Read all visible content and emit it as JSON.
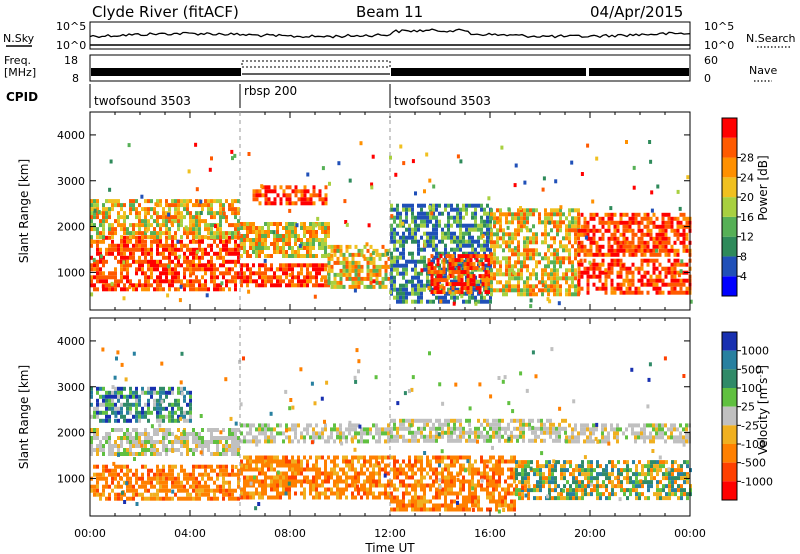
{
  "header": {
    "station": "Clyde River (fitACF)",
    "beam": "Beam 11",
    "date": "04/Apr/2015"
  },
  "noise_panel": {
    "left_label": "N.Sky",
    "right_label": "N.Search",
    "left_ticks": [
      "10^5",
      "10^0"
    ],
    "right_ticks": [
      "10^5",
      "10^0"
    ]
  },
  "freq_panel": {
    "left_label_line1": "Freq.",
    "left_label_line2": "[MHz]",
    "right_label": "Nave",
    "left_ticks": [
      "18",
      "8"
    ],
    "right_ticks": [
      "60",
      "0"
    ]
  },
  "cpid": {
    "label": "CPID",
    "segments": [
      {
        "name": "twofsound 3503",
        "start_hour": 0,
        "end_hour": 6
      },
      {
        "name": "rbsp 200",
        "start_hour": 6,
        "end_hour": 12
      },
      {
        "name": "twofsound 3503",
        "start_hour": 12,
        "end_hour": 24
      }
    ]
  },
  "power_panel": {
    "ylabel": "Slant Range [km]",
    "yticks": [
      "1000",
      "2000",
      "3000",
      "4000"
    ],
    "colorbar_label": "Power [dB]",
    "colorbar_ticks": [
      "4",
      "8",
      "12",
      "16",
      "20",
      "24",
      "28"
    ],
    "colorbar_colors": [
      "#0000ff",
      "#2050b8",
      "#2e8a5a",
      "#56b056",
      "#a8d040",
      "#f0c020",
      "#ff9000",
      "#ff5a00",
      "#ff0000"
    ]
  },
  "velocity_panel": {
    "ylabel": "Slant Range [km]",
    "yticks": [
      "1000",
      "2000",
      "3000",
      "4000"
    ],
    "colorbar_label": "Velocity [m s",
    "colorbar_label_sup": "-1",
    "colorbar_label_end": "]",
    "colorbar_ticks": [
      "1000",
      "500",
      "100",
      "25",
      "-25",
      "-100",
      "-500",
      "-1000"
    ],
    "colorbar_colors": [
      "#1830b0",
      "#2880a0",
      "#308a68",
      "#60c040",
      "#c0c0c0",
      "#f0b020",
      "#ff8000",
      "#ff4000",
      "#ff0000"
    ]
  },
  "xaxis": {
    "ticks": [
      "00:00",
      "04:00",
      "08:00",
      "12:00",
      "16:00",
      "20:00",
      "00:00"
    ],
    "label": "Time UT"
  },
  "chart_data": {
    "type": "heatmap",
    "x_range_hours": [
      0,
      24
    ],
    "y_range_km": [
      180,
      4500
    ],
    "power_bands": [
      {
        "t0": 0.0,
        "t1": 6.0,
        "r0": 600,
        "r1": 1200,
        "level": "high"
      },
      {
        "t0": 0.0,
        "t1": 6.0,
        "r0": 1200,
        "r1": 1800,
        "level": "high"
      },
      {
        "t0": 0.0,
        "t1": 6.0,
        "r0": 1800,
        "r1": 2600,
        "level": "mid"
      },
      {
        "t0": 6.0,
        "t1": 9.5,
        "r0": 700,
        "r1": 1200,
        "level": "high"
      },
      {
        "t0": 6.0,
        "t1": 9.5,
        "r0": 1400,
        "r1": 2100,
        "level": "mid"
      },
      {
        "t0": 6.5,
        "t1": 9.5,
        "r0": 2500,
        "r1": 2900,
        "level": "high"
      },
      {
        "t0": 9.5,
        "t1": 12.0,
        "r0": 700,
        "r1": 1600,
        "level": "mid"
      },
      {
        "t0": 12.0,
        "t1": 16.0,
        "r0": 400,
        "r1": 2500,
        "level": "low"
      },
      {
        "t0": 13.5,
        "t1": 16.0,
        "r0": 600,
        "r1": 1400,
        "level": "high"
      },
      {
        "t0": 16.0,
        "t1": 19.5,
        "r0": 500,
        "r1": 2400,
        "level": "mid"
      },
      {
        "t0": 19.5,
        "t1": 24.0,
        "r0": 600,
        "r1": 1300,
        "level": "high"
      },
      {
        "t0": 19.5,
        "t1": 24.0,
        "r0": 1400,
        "r1": 2300,
        "level": "high"
      }
    ],
    "velocity_bands": [
      {
        "t0": 0.0,
        "t1": 6.0,
        "r0": 600,
        "r1": 1300,
        "level": "neg"
      },
      {
        "t0": 0.0,
        "t1": 6.0,
        "r0": 1500,
        "r1": 2100,
        "level": "zero"
      },
      {
        "t0": 0.0,
        "t1": 4.0,
        "r0": 2300,
        "r1": 3000,
        "level": "pos"
      },
      {
        "t0": 6.0,
        "t1": 12.0,
        "r0": 600,
        "r1": 1500,
        "level": "neg"
      },
      {
        "t0": 6.0,
        "t1": 12.0,
        "r0": 1800,
        "r1": 2200,
        "level": "zero"
      },
      {
        "t0": 12.0,
        "t1": 17.0,
        "r0": 300,
        "r1": 1500,
        "level": "neg"
      },
      {
        "t0": 12.0,
        "t1": 19.0,
        "r0": 1800,
        "r1": 2300,
        "level": "zero"
      },
      {
        "t0": 17.0,
        "t1": 24.0,
        "r0": 600,
        "r1": 1400,
        "level": "mixed"
      },
      {
        "t0": 19.0,
        "t1": 24.0,
        "r0": 1800,
        "r1": 2200,
        "level": "zero"
      }
    ]
  }
}
